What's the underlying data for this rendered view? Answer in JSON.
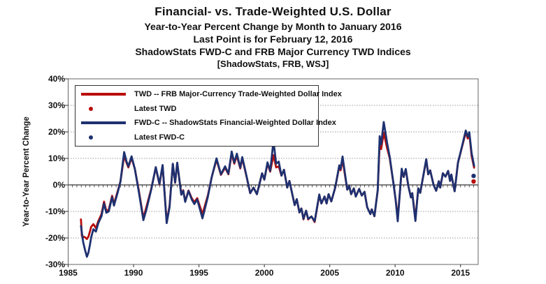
{
  "header": {
    "title": "Financial- vs. Trade-Weighted U.S. Dollar",
    "subtitle1": "Year-to-Year Percent Change by Month to January 2016",
    "subtitle2": "Last Point is for February 12, 2016",
    "subtitle3": "ShadowStats FWD-C and FRB Major Currency TWD Indices",
    "subtitle4": "[ShadowStats, FRB, WSJ]"
  },
  "chart_data": {
    "type": "line",
    "title": "Financial- vs. Trade-Weighted U.S. Dollar",
    "xlabel": "",
    "ylabel": "Year-to-Year Percent Change",
    "grid": "horizontal dotted gridlines; x-axis drawn at 0% with minor ticks; labels at bottom",
    "legend_position": "top-left inside plot",
    "x_axis": {
      "tick_years": [
        1985,
        1990,
        1995,
        2000,
        2005,
        2010,
        2015
      ],
      "range": [
        1985,
        2016.35
      ]
    },
    "y_axis": {
      "tick_values": [
        40,
        30,
        20,
        10,
        0,
        -10,
        -20,
        -30
      ],
      "tick_labels": [
        "40%",
        "30%",
        "20%",
        "10%",
        "0%",
        "-10%",
        "-20%",
        "-30%"
      ],
      "range": [
        -30,
        40
      ]
    },
    "colors": {
      "twd": "#b90d0b",
      "fwdc": "#1e3170"
    },
    "legend": [
      {
        "series": "twd",
        "swatch": "line",
        "label": "TWD -- FRB Major-Currency Trade-Weighted Dollar Index"
      },
      {
        "series": "twd",
        "swatch": "dot",
        "label": "Latest TWD"
      },
      {
        "series": "fwdc",
        "swatch": "line",
        "label": "FWD-C -- ShadowStats Financial-Weighted Dollar Index"
      },
      {
        "series": "fwdc",
        "swatch": "dot",
        "label": "Latest FWD-C"
      }
    ],
    "series": [
      {
        "name": "TWD",
        "color_key": "twd",
        "points": [
          [
            1985.98,
            -13
          ],
          [
            1986.05,
            -19.3
          ],
          [
            1986.15,
            -19.5
          ],
          [
            1986.3,
            -19.8
          ],
          [
            1986.43,
            -20.4
          ],
          [
            1986.55,
            -19.5
          ],
          [
            1986.67,
            -17.5
          ],
          [
            1986.76,
            -15.8
          ],
          [
            1986.93,
            -14.8
          ],
          [
            1987.12,
            -16.3
          ],
          [
            1987.3,
            -13.7
          ],
          [
            1987.55,
            -11
          ],
          [
            1987.74,
            -6.3
          ],
          [
            1987.92,
            -9.8
          ],
          [
            1988.1,
            -9.4
          ],
          [
            1988.36,
            -4.1
          ],
          [
            1988.5,
            -7.2
          ],
          [
            1988.78,
            -2.5
          ],
          [
            1989.0,
            1.3
          ],
          [
            1989.28,
            11
          ],
          [
            1989.45,
            8.5
          ],
          [
            1989.6,
            6.6
          ],
          [
            1989.85,
            10.2
          ],
          [
            1990.1,
            6
          ],
          [
            1990.4,
            -2
          ],
          [
            1990.75,
            -12.5
          ],
          [
            1991.0,
            -8
          ],
          [
            1991.35,
            -1.5
          ],
          [
            1991.7,
            6.5
          ],
          [
            1991.98,
            0.2
          ],
          [
            1992.22,
            7.3
          ],
          [
            1992.53,
            -13.8
          ],
          [
            1992.75,
            -8
          ],
          [
            1993.0,
            7.8
          ],
          [
            1993.18,
            0.8
          ],
          [
            1993.34,
            8.2
          ],
          [
            1993.65,
            -3.5
          ],
          [
            1993.8,
            -2
          ],
          [
            1993.95,
            -6.2
          ],
          [
            1994.2,
            -2.1
          ],
          [
            1994.45,
            -5
          ],
          [
            1994.65,
            -6.5
          ],
          [
            1994.87,
            -5
          ],
          [
            1995.27,
            -11
          ],
          [
            1995.68,
            -4
          ],
          [
            1995.98,
            3
          ],
          [
            1996.34,
            9.5
          ],
          [
            1996.68,
            3.8
          ],
          [
            1997.0,
            6.5
          ],
          [
            1997.25,
            4
          ],
          [
            1997.5,
            11.8
          ],
          [
            1997.7,
            8
          ],
          [
            1997.9,
            11
          ],
          [
            1998.16,
            6.2
          ],
          [
            1998.31,
            10
          ],
          [
            1998.6,
            4
          ],
          [
            1998.92,
            -3.1
          ],
          [
            1999.17,
            -1
          ],
          [
            1999.43,
            -3.5
          ],
          [
            1999.83,
            4.4
          ],
          [
            2000.0,
            2
          ],
          [
            2000.24,
            8
          ],
          [
            2000.45,
            5
          ],
          [
            2000.7,
            11.2
          ],
          [
            2000.9,
            6.6
          ],
          [
            2001.1,
            7
          ],
          [
            2001.31,
            3.5
          ],
          [
            2001.5,
            5.7
          ],
          [
            2001.75,
            -1
          ],
          [
            2001.92,
            1.5
          ],
          [
            2002.32,
            -7.6
          ],
          [
            2002.48,
            -5.4
          ],
          [
            2002.68,
            -10.4
          ],
          [
            2002.83,
            -8.9
          ],
          [
            2002.99,
            -13
          ],
          [
            2003.19,
            -9.7
          ],
          [
            2003.35,
            -13
          ],
          [
            2003.6,
            -11.9
          ],
          [
            2003.85,
            -14
          ],
          [
            2004.2,
            -3.8
          ],
          [
            2004.36,
            -7
          ],
          [
            2004.6,
            -4.4
          ],
          [
            2004.76,
            -7
          ],
          [
            2004.91,
            -3.5
          ],
          [
            2005.12,
            -6.2
          ],
          [
            2005.42,
            -1
          ],
          [
            2005.73,
            7
          ],
          [
            2005.83,
            5.5
          ],
          [
            2005.98,
            9.5
          ],
          [
            2006.34,
            -1.8
          ],
          [
            2006.49,
            -0.4
          ],
          [
            2006.64,
            -3.5
          ],
          [
            2006.84,
            -1.3
          ],
          [
            2006.99,
            -4.4
          ],
          [
            2007.25,
            -1.5
          ],
          [
            2007.45,
            -4
          ],
          [
            2007.66,
            -2.6
          ],
          [
            2007.86,
            -8.4
          ],
          [
            2008.11,
            -11
          ],
          [
            2008.21,
            -9.2
          ],
          [
            2008.42,
            -11.8
          ],
          [
            2008.67,
            -2
          ],
          [
            2008.82,
            16
          ],
          [
            2008.93,
            13.5
          ],
          [
            2009.13,
            19.7
          ],
          [
            2009.38,
            14
          ],
          [
            2009.59,
            10
          ],
          [
            2009.89,
            0
          ],
          [
            2010.04,
            -5.8
          ],
          [
            2010.2,
            -12.5
          ],
          [
            2010.5,
            5.5
          ],
          [
            2010.65,
            3
          ],
          [
            2010.81,
            5.8
          ],
          [
            2011.01,
            -0.4
          ],
          [
            2011.21,
            -4.7
          ],
          [
            2011.31,
            -3.1
          ],
          [
            2011.55,
            -12.8
          ],
          [
            2011.77,
            -1.3
          ],
          [
            2011.92,
            -3
          ],
          [
            2012.38,
            9.5
          ],
          [
            2012.53,
            4
          ],
          [
            2012.68,
            5.5
          ],
          [
            2012.94,
            0
          ],
          [
            2013.14,
            -2.2
          ],
          [
            2013.34,
            1.4
          ],
          [
            2013.45,
            -1
          ],
          [
            2013.65,
            4.4
          ],
          [
            2013.85,
            3.1
          ],
          [
            2014.05,
            5.3
          ],
          [
            2014.2,
            1.5
          ],
          [
            2014.3,
            3.9
          ],
          [
            2014.45,
            0
          ],
          [
            2014.55,
            -2.4
          ],
          [
            2014.7,
            3.9
          ],
          [
            2014.8,
            8.3
          ],
          [
            2015.1,
            14
          ],
          [
            2015.4,
            19.8
          ],
          [
            2015.55,
            17.5
          ],
          [
            2015.67,
            19.3
          ],
          [
            2015.85,
            10.9
          ],
          [
            2016.04,
            6.5
          ]
        ]
      },
      {
        "name": "FWD-C",
        "color_key": "fwdc",
        "points": [
          [
            1985.98,
            -15.5
          ],
          [
            1986.05,
            -18
          ],
          [
            1986.15,
            -21.6
          ],
          [
            1986.3,
            -24.7
          ],
          [
            1986.43,
            -27.1
          ],
          [
            1986.55,
            -25.5
          ],
          [
            1986.67,
            -22.5
          ],
          [
            1986.76,
            -19.8
          ],
          [
            1986.93,
            -16.7
          ],
          [
            1987.12,
            -17.6
          ],
          [
            1987.3,
            -14.5
          ],
          [
            1987.55,
            -11.8
          ],
          [
            1987.74,
            -7
          ],
          [
            1987.92,
            -10.5
          ],
          [
            1988.1,
            -10
          ],
          [
            1988.36,
            -4.6
          ],
          [
            1988.5,
            -7.8
          ],
          [
            1988.78,
            -3
          ],
          [
            1989.0,
            1.3
          ],
          [
            1989.28,
            12.4
          ],
          [
            1989.45,
            9
          ],
          [
            1989.6,
            7
          ],
          [
            1989.85,
            10.8
          ],
          [
            1990.1,
            6
          ],
          [
            1990.4,
            -2.5
          ],
          [
            1990.75,
            -13.3
          ],
          [
            1991.0,
            -9
          ],
          [
            1991.35,
            -1.8
          ],
          [
            1991.7,
            6.7
          ],
          [
            1991.98,
            0.4
          ],
          [
            1992.22,
            7.5
          ],
          [
            1992.53,
            -14.4
          ],
          [
            1992.75,
            -8.5
          ],
          [
            1993.0,
            8
          ],
          [
            1993.18,
            0.9
          ],
          [
            1993.34,
            8.4
          ],
          [
            1993.65,
            -3.7
          ],
          [
            1993.8,
            -2.2
          ],
          [
            1993.95,
            -6.4
          ],
          [
            1994.2,
            -2.3
          ],
          [
            1994.45,
            -5.5
          ],
          [
            1994.65,
            -7.2
          ],
          [
            1994.87,
            -5.5
          ],
          [
            1995.27,
            -12.6
          ],
          [
            1995.68,
            -4.5
          ],
          [
            1995.98,
            3
          ],
          [
            1996.34,
            10
          ],
          [
            1996.68,
            4
          ],
          [
            1997.0,
            7
          ],
          [
            1997.25,
            4.2
          ],
          [
            1997.5,
            12.6
          ],
          [
            1997.7,
            8.4
          ],
          [
            1997.9,
            11.8
          ],
          [
            1998.16,
            6.5
          ],
          [
            1998.31,
            10.5
          ],
          [
            1998.6,
            4.2
          ],
          [
            1998.92,
            -3.1
          ],
          [
            1999.17,
            -1
          ],
          [
            1999.43,
            -3.5
          ],
          [
            1999.83,
            4.4
          ],
          [
            2000.0,
            2
          ],
          [
            2000.24,
            8.5
          ],
          [
            2000.45,
            5.3
          ],
          [
            2000.7,
            16.6
          ],
          [
            2000.9,
            8
          ],
          [
            2001.1,
            8.8
          ],
          [
            2001.31,
            3.5
          ],
          [
            2001.5,
            5.7
          ],
          [
            2001.75,
            -1
          ],
          [
            2001.92,
            1.5
          ],
          [
            2002.32,
            -7.6
          ],
          [
            2002.48,
            -5.4
          ],
          [
            2002.68,
            -10.4
          ],
          [
            2002.83,
            -8.9
          ],
          [
            2002.99,
            -12.8
          ],
          [
            2003.19,
            -9.7
          ],
          [
            2003.35,
            -12.8
          ],
          [
            2003.6,
            -11.9
          ],
          [
            2003.85,
            -13.7
          ],
          [
            2004.2,
            -3.6
          ],
          [
            2004.36,
            -7
          ],
          [
            2004.6,
            -4.4
          ],
          [
            2004.76,
            -7
          ],
          [
            2004.91,
            -3.5
          ],
          [
            2005.12,
            -6.2
          ],
          [
            2005.42,
            -1
          ],
          [
            2005.73,
            7.4
          ],
          [
            2005.83,
            6
          ],
          [
            2005.98,
            10.7
          ],
          [
            2006.34,
            -1.8
          ],
          [
            2006.49,
            -0.4
          ],
          [
            2006.64,
            -3.5
          ],
          [
            2006.84,
            -1.3
          ],
          [
            2006.99,
            -4.4
          ],
          [
            2007.25,
            -1.5
          ],
          [
            2007.45,
            -4
          ],
          [
            2007.66,
            -2.6
          ],
          [
            2007.86,
            -8.4
          ],
          [
            2008.11,
            -11
          ],
          [
            2008.21,
            -9.2
          ],
          [
            2008.42,
            -11.8
          ],
          [
            2008.67,
            -2
          ],
          [
            2008.82,
            18.4
          ],
          [
            2008.93,
            15.3
          ],
          [
            2009.13,
            23.7
          ],
          [
            2009.38,
            16
          ],
          [
            2009.59,
            10.5
          ],
          [
            2009.89,
            0
          ],
          [
            2010.04,
            -5.8
          ],
          [
            2010.2,
            -13.7
          ],
          [
            2010.5,
            6.1
          ],
          [
            2010.65,
            3
          ],
          [
            2010.81,
            6
          ],
          [
            2011.01,
            -0.4
          ],
          [
            2011.21,
            -4.7
          ],
          [
            2011.31,
            -3.1
          ],
          [
            2011.55,
            -13.6
          ],
          [
            2011.77,
            -1.3
          ],
          [
            2011.92,
            -3
          ],
          [
            2012.38,
            9.7
          ],
          [
            2012.53,
            4
          ],
          [
            2012.68,
            5.5
          ],
          [
            2012.94,
            0
          ],
          [
            2013.14,
            -2.2
          ],
          [
            2013.34,
            1.4
          ],
          [
            2013.45,
            -1
          ],
          [
            2013.65,
            4.4
          ],
          [
            2013.85,
            3.1
          ],
          [
            2014.05,
            5.3
          ],
          [
            2014.2,
            1.5
          ],
          [
            2014.3,
            3.9
          ],
          [
            2014.45,
            0
          ],
          [
            2014.55,
            -2.4
          ],
          [
            2014.7,
            3.9
          ],
          [
            2014.8,
            8.3
          ],
          [
            2015.1,
            14.3
          ],
          [
            2015.4,
            20.5
          ],
          [
            2015.55,
            18.2
          ],
          [
            2015.67,
            19.9
          ],
          [
            2015.85,
            12
          ],
          [
            2016.04,
            7.2
          ]
        ]
      }
    ],
    "latest": [
      {
        "name": "Latest FWD-C",
        "color_key": "fwdc",
        "x": 2016.0,
        "y": 3.4
      },
      {
        "name": "Latest TWD",
        "color_key": "twd",
        "x": 2016.0,
        "y": 1.3
      }
    ]
  }
}
